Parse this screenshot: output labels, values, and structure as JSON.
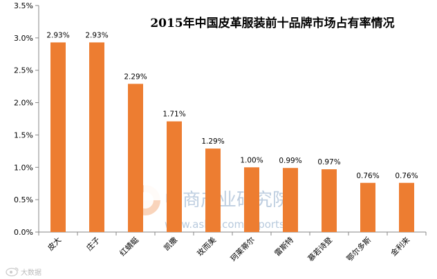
{
  "chart_data": {
    "type": "bar",
    "title": "2015年中国皮革服装前十品牌市场占有率情况",
    "categories": [
      "皮大",
      "庄子",
      "红蜻蜓",
      "凯撒",
      "玫而美",
      "珂莱蒂尔",
      "雷斯特",
      "慕若诗登",
      "鄂尔多斯",
      "金利来"
    ],
    "values": [
      2.93,
      2.93,
      2.29,
      1.71,
      1.29,
      1.0,
      0.99,
      0.97,
      0.76,
      0.76
    ],
    "value_labels": [
      "2.93%",
      "2.93%",
      "2.29%",
      "1.71%",
      "1.29%",
      "1.00%",
      "0.99%",
      "0.97%",
      "0.76%",
      "0.76%"
    ],
    "ylim": [
      0,
      3.5
    ],
    "yticks": [
      0,
      0.5,
      1.0,
      1.5,
      2.0,
      2.5,
      3.0,
      3.5
    ],
    "ytick_labels": [
      "0.0%",
      "0.5%",
      "1.0%",
      "1.5%",
      "2.0%",
      "2.5%",
      "3.0%",
      "3.5%"
    ],
    "grid": false,
    "bar_color": "#ed7d31"
  },
  "watermark": {
    "brand": "中商产业研究院",
    "url": "www.askci.com/reports/"
  },
  "credit": "大数据"
}
